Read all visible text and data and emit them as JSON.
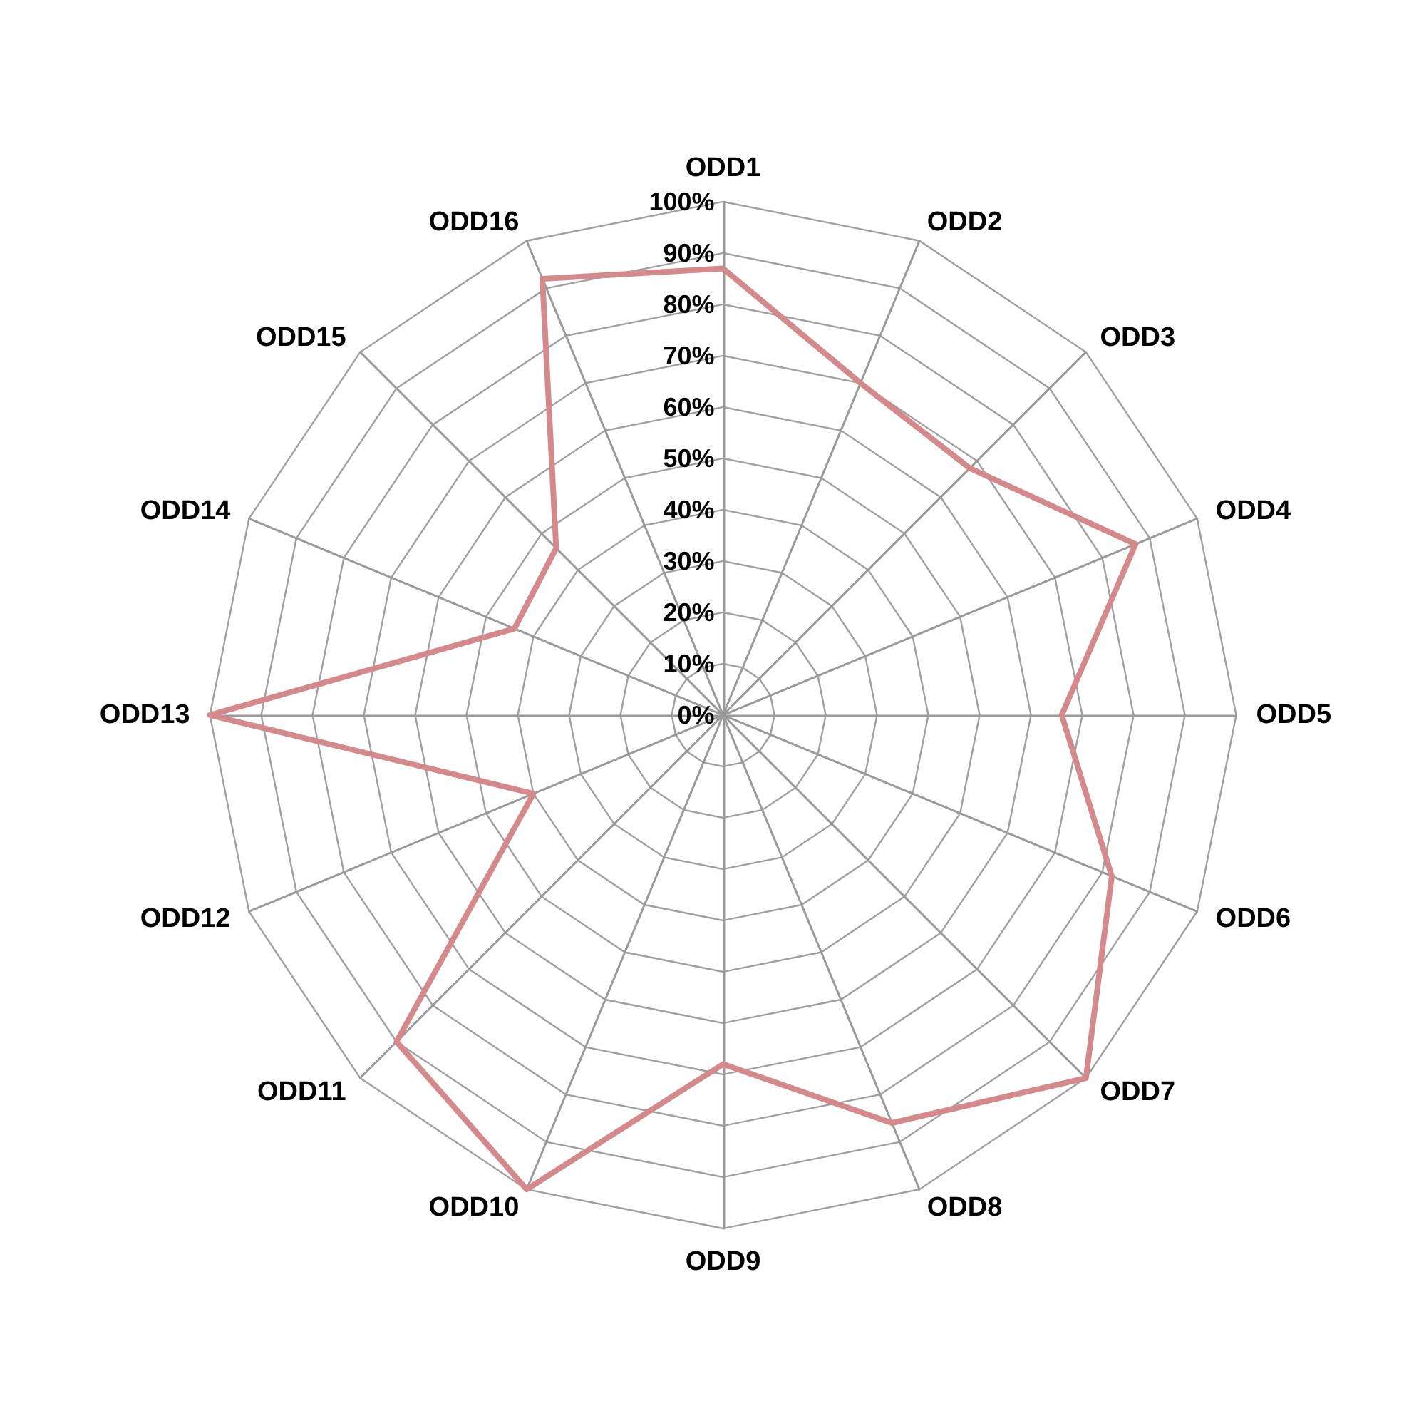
{
  "chart_data": {
    "type": "radar",
    "categories": [
      "ODD1",
      "ODD2",
      "ODD3",
      "ODD4",
      "ODD5",
      "ODD6",
      "ODD7",
      "ODD8",
      "ODD9",
      "ODD10",
      "ODD11",
      "ODD12",
      "ODD13",
      "ODD14",
      "ODD15",
      "ODD16"
    ],
    "series": [
      {
        "color": "#d4898c",
        "values": [
          87,
          70,
          68,
          87,
          66,
          82,
          100,
          86,
          68,
          100,
          90,
          40,
          100,
          44,
          46,
          92
        ]
      }
    ],
    "ylim": [
      0,
      100
    ],
    "yticks": [
      {
        "value": 0,
        "label": "0%"
      },
      {
        "value": 10,
        "label": "10%"
      },
      {
        "value": 20,
        "label": "20%"
      },
      {
        "value": 30,
        "label": "30%"
      },
      {
        "value": 40,
        "label": "40%"
      },
      {
        "value": 50,
        "label": "50%"
      },
      {
        "value": 60,
        "label": "60%"
      },
      {
        "value": 70,
        "label": "70%"
      },
      {
        "value": 80,
        "label": "80%"
      },
      {
        "value": 90,
        "label": "90%"
      },
      {
        "value": 100,
        "label": "100%"
      }
    ],
    "grid": true,
    "marker": "none"
  }
}
